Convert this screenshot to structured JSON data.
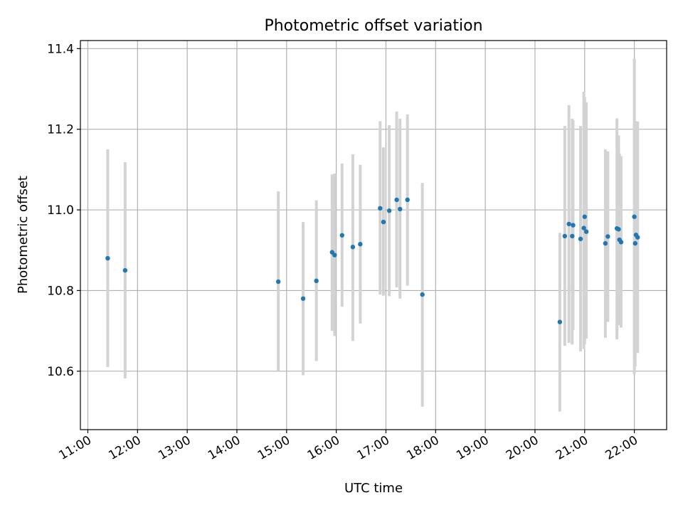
{
  "colors": {
    "marker": "#1f77b4",
    "errorbar": "#d3d3d3",
    "grid": "#b0b0b0",
    "axes": "#000000"
  },
  "chart_data": {
    "type": "scatter",
    "title": "Photometric offset variation",
    "xlabel": "UTC time",
    "ylabel": "Photometric offset",
    "x_unit": "UTC time (HH:MM)",
    "xlim": [
      "10:51",
      "22:39"
    ],
    "ylim": [
      10.455,
      11.42
    ],
    "grid": true,
    "legend": "none",
    "xticks": [
      "11:00",
      "12:00",
      "13:00",
      "14:00",
      "15:00",
      "16:00",
      "17:00",
      "18:00",
      "19:00",
      "20:00",
      "21:00",
      "22:00"
    ],
    "yticks": [
      "10.6",
      "10.8",
      "11.0",
      "11.2",
      "11.4"
    ],
    "series": [
      {
        "marker": "circle",
        "error_bars": "vertical",
        "points": [
          {
            "x": "11:24",
            "y": 10.88,
            "ymin": 10.61,
            "ymax": 11.15
          },
          {
            "x": "11:45",
            "y": 10.85,
            "ymin": 10.582,
            "ymax": 11.118
          },
          {
            "x": "14:50",
            "y": 10.822,
            "ymin": 10.6,
            "ymax": 11.046
          },
          {
            "x": "15:20",
            "y": 10.78,
            "ymin": 10.59,
            "ymax": 10.97
          },
          {
            "x": "15:36",
            "y": 10.824,
            "ymin": 10.625,
            "ymax": 11.024
          },
          {
            "x": "15:55",
            "y": 10.895,
            "ymin": 10.7,
            "ymax": 11.088
          },
          {
            "x": "15:58",
            "y": 10.888,
            "ymin": 10.687,
            "ymax": 11.09
          },
          {
            "x": "16:07",
            "y": 10.937,
            "ymin": 10.76,
            "ymax": 11.115
          },
          {
            "x": "16:20",
            "y": 10.908,
            "ymin": 10.675,
            "ymax": 11.138
          },
          {
            "x": "16:29",
            "y": 10.915,
            "ymin": 10.718,
            "ymax": 11.112
          },
          {
            "x": "16:53",
            "y": 11.004,
            "ymin": 10.79,
            "ymax": 11.22
          },
          {
            "x": "16:57",
            "y": 10.97,
            "ymin": 10.787,
            "ymax": 11.155
          },
          {
            "x": "17:04",
            "y": 10.998,
            "ymin": 10.786,
            "ymax": 11.21
          },
          {
            "x": "17:13",
            "y": 11.025,
            "ymin": 10.808,
            "ymax": 11.244
          },
          {
            "x": "17:17",
            "y": 11.002,
            "ymin": 10.78,
            "ymax": 11.226
          },
          {
            "x": "17:26",
            "y": 11.025,
            "ymin": 10.812,
            "ymax": 11.237
          },
          {
            "x": "17:44",
            "y": 10.79,
            "ymin": 10.512,
            "ymax": 11.067
          },
          {
            "x": "20:30",
            "y": 10.722,
            "ymin": 10.5,
            "ymax": 10.943
          },
          {
            "x": "20:36",
            "y": 10.935,
            "ymin": 10.663,
            "ymax": 11.208
          },
          {
            "x": "20:41",
            "y": 10.965,
            "ymin": 10.67,
            "ymax": 11.26
          },
          {
            "x": "20:45",
            "y": 10.935,
            "ymin": 10.666,
            "ymax": 11.226
          },
          {
            "x": "20:46",
            "y": 10.962,
            "ymin": 10.702,
            "ymax": 11.222
          },
          {
            "x": "20:55",
            "y": 10.928,
            "ymin": 10.649,
            "ymax": 11.208
          },
          {
            "x": "20:59",
            "y": 10.955,
            "ymin": 10.655,
            "ymax": 11.293
          },
          {
            "x": "21:00",
            "y": 10.983,
            "ymin": 10.667,
            "ymax": 11.28
          },
          {
            "x": "21:02",
            "y": 10.946,
            "ymin": 10.681,
            "ymax": 11.267
          },
          {
            "x": "21:25",
            "y": 10.917,
            "ymin": 10.683,
            "ymax": 11.15
          },
          {
            "x": "21:28",
            "y": 10.934,
            "ymin": 10.722,
            "ymax": 11.145
          },
          {
            "x": "21:39",
            "y": 10.954,
            "ymin": 10.679,
            "ymax": 11.227
          },
          {
            "x": "21:41",
            "y": 10.952,
            "ymin": 10.72,
            "ymax": 11.185
          },
          {
            "x": "21:42",
            "y": 10.926,
            "ymin": 10.714,
            "ymax": 11.14
          },
          {
            "x": "21:44",
            "y": 10.92,
            "ymin": 10.708,
            "ymax": 11.133
          },
          {
            "x": "22:00",
            "y": 10.983,
            "ymin": 10.592,
            "ymax": 11.375
          },
          {
            "x": "22:01",
            "y": 10.917,
            "ymin": 10.612,
            "ymax": 11.22
          },
          {
            "x": "22:02",
            "y": 10.938,
            "ymin": 10.651,
            "ymax": 11.22
          },
          {
            "x": "22:04",
            "y": 10.932,
            "ymin": 10.645,
            "ymax": 11.219
          }
        ]
      }
    ]
  }
}
